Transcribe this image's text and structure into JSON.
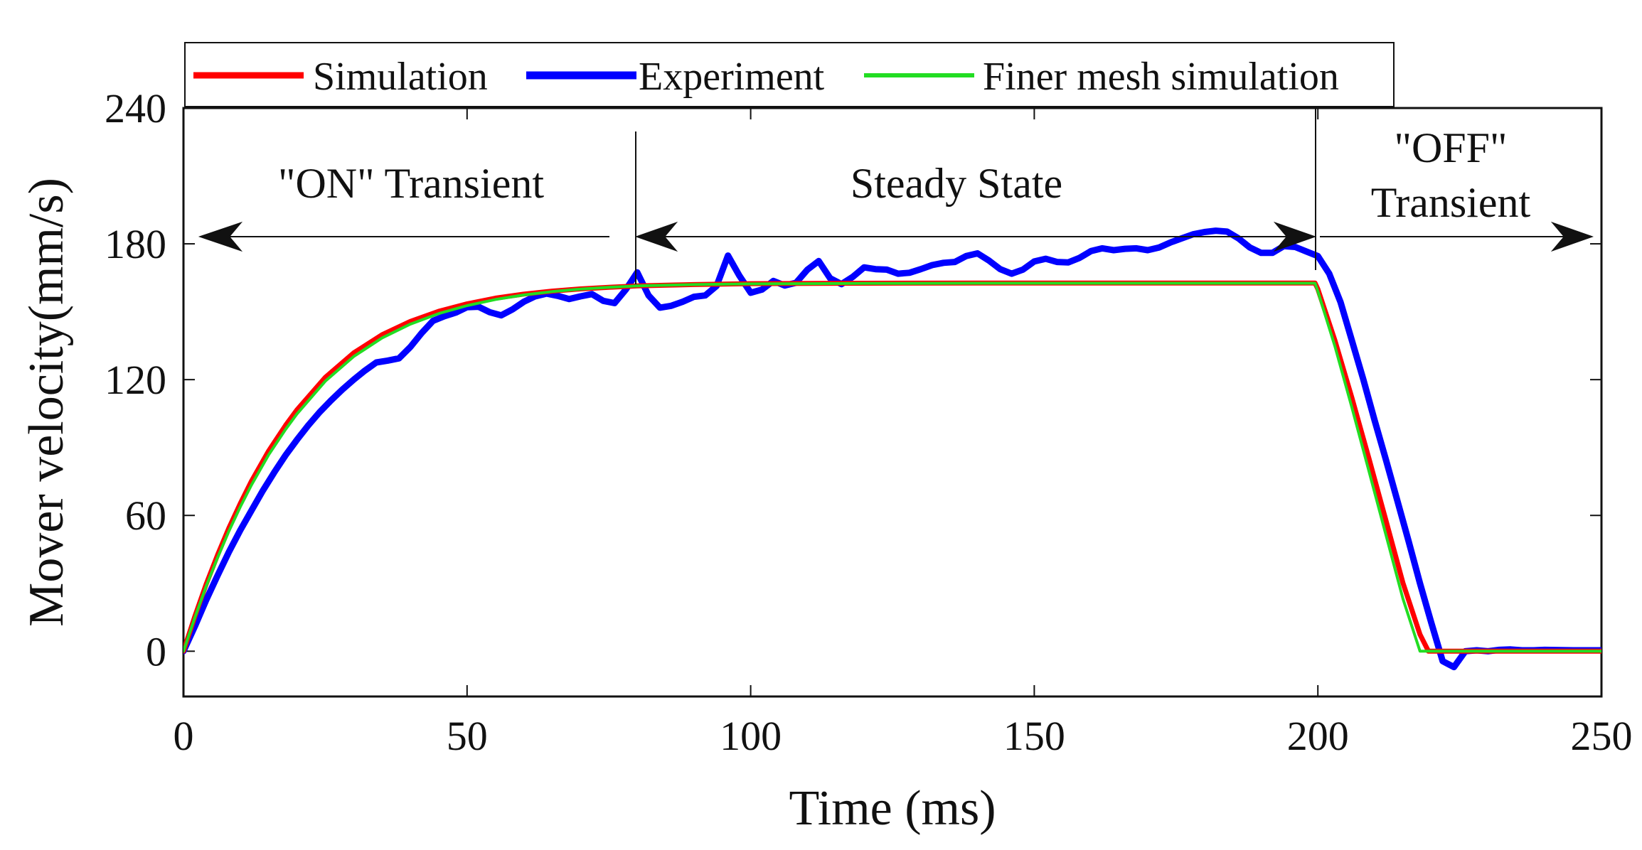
{
  "chart_data": {
    "type": "line",
    "title": "",
    "xlabel": "Time (ms)",
    "ylabel": "Mover velocity(mm/s)",
    "xlim": [
      0,
      250
    ],
    "ylim": [
      -20,
      240
    ],
    "xticks": [
      0,
      50,
      100,
      150,
      200,
      250
    ],
    "yticks": [
      0,
      60,
      120,
      180,
      240
    ],
    "grid": false,
    "legend_position": "top",
    "series": [
      {
        "name": "Simulation",
        "color": "#ff0000",
        "x": [
          0,
          2,
          4,
          6,
          8,
          10,
          12,
          15,
          18,
          20,
          25,
          30,
          35,
          40,
          45,
          50,
          55,
          60,
          65,
          70,
          75,
          80,
          90,
          100,
          120,
          140,
          160,
          180,
          199.5,
          200,
          203,
          206,
          209,
          212,
          215,
          218,
          219.5,
          225,
          230,
          240,
          250
        ],
        "values": [
          0,
          15.4,
          29.6,
          42.5,
          54.4,
          65.2,
          75.2,
          88.4,
          99.8,
          106.6,
          121.0,
          131.8,
          139.8,
          145.7,
          150.2,
          153.5,
          156.0,
          157.8,
          159.1,
          160.1,
          160.8,
          161.4,
          162.0,
          162.4,
          162.6,
          162.7,
          162.7,
          162.7,
          162.7,
          160.0,
          137.4,
          111.9,
          85.2,
          57.8,
          30.2,
          7.4,
          0,
          0,
          0,
          0,
          0
        ]
      },
      {
        "name": "Experiment",
        "color": "#0000ff",
        "x": [
          0,
          2,
          4,
          6,
          8,
          10,
          12,
          14,
          16,
          18,
          20,
          22,
          24,
          26,
          28,
          30,
          32,
          34,
          36,
          38,
          40,
          42,
          44,
          46,
          48,
          50,
          52,
          54,
          56,
          58,
          60,
          62,
          64,
          66,
          68,
          70,
          72,
          74,
          76,
          78,
          80,
          82,
          84,
          86,
          88,
          90,
          92,
          94,
          96,
          98,
          100,
          102,
          104,
          106,
          108,
          110,
          112,
          114,
          116,
          118,
          120,
          122,
          124,
          126,
          128,
          130,
          132,
          134,
          136,
          138,
          140,
          142,
          144,
          146,
          148,
          150,
          152,
          154,
          156,
          158,
          160,
          162,
          164,
          166,
          168,
          170,
          172,
          174,
          176,
          178,
          180,
          182,
          184,
          186,
          188,
          190,
          192,
          194,
          196,
          198,
          200,
          202,
          204,
          206,
          208,
          210,
          212,
          214,
          216,
          218,
          220,
          222,
          224,
          226,
          228,
          230,
          232,
          234,
          236,
          238,
          240,
          245,
          250
        ],
        "values": [
          0,
          11,
          22.6,
          33.4,
          43.8,
          53.4,
          62.2,
          71,
          79,
          86.6,
          93.4,
          99.8,
          105.6,
          110.8,
          115.6,
          120,
          124,
          127.6,
          128.4,
          129.4,
          134.4,
          140.6,
          146,
          148,
          149.6,
          152,
          152.2,
          149.8,
          148.4,
          151,
          154.4,
          156.8,
          158,
          157,
          155.6,
          156.8,
          157.8,
          154.8,
          153.8,
          159.8,
          167.4,
          157.2,
          151.8,
          152.6,
          154.4,
          156.6,
          157.2,
          161.4,
          174.8,
          166,
          158.4,
          159.8,
          163.6,
          161.6,
          162.8,
          168.6,
          172.4,
          164.8,
          162.2,
          165.4,
          169.6,
          168.8,
          168.6,
          166.8,
          167.2,
          168.8,
          170.6,
          171.6,
          172,
          174.6,
          175.8,
          172.6,
          168.8,
          166.8,
          168.6,
          172.2,
          173.4,
          172,
          171.8,
          173.8,
          176.8,
          178,
          177.2,
          177.8,
          178,
          177.2,
          178.4,
          180.6,
          182.4,
          184.2,
          185.2,
          185.8,
          185.4,
          182.4,
          178.4,
          176,
          176,
          179,
          178.6,
          176.6,
          174.6,
          166.8,
          154.2,
          137.2,
          120.2,
          102,
          84.6,
          66.6,
          48.6,
          30,
          12.6,
          -4.4,
          -7,
          0,
          0.4,
          0,
          0.6,
          0.8,
          0.4,
          0.4,
          0.6,
          0.4,
          0.4
        ]
      },
      {
        "name": "Finer mesh simulation",
        "color": "#22dd22",
        "x": [
          0,
          2,
          4,
          6,
          8,
          10,
          12,
          15,
          18,
          20,
          25,
          30,
          35,
          40,
          45,
          50,
          55,
          60,
          65,
          70,
          75,
          80,
          90,
          100,
          120,
          140,
          160,
          180,
          199.5,
          200,
          203,
          206,
          209,
          212,
          215,
          218,
          219,
          225,
          230,
          240,
          250
        ],
        "values": [
          0,
          14.9,
          28.7,
          41.3,
          53.0,
          63.7,
          73.5,
          86.7,
          98.0,
          104.8,
          119.3,
          130.2,
          138.4,
          144.5,
          149.2,
          152.7,
          155.4,
          157.4,
          158.9,
          160.0,
          160.8,
          161.4,
          162.0,
          162.3,
          162.5,
          162.6,
          162.6,
          162.6,
          162.6,
          159.0,
          134.8,
          107.6,
          79.6,
          51.4,
          23.2,
          0,
          0,
          0,
          0,
          0,
          0
        ]
      }
    ],
    "annotations": [
      {
        "id": "on",
        "text": "\"ON\" Transient"
      },
      {
        "id": "steady",
        "text": "Steady State"
      },
      {
        "id": "off1",
        "text": "\"OFF\""
      },
      {
        "id": "off2",
        "text": "Transient"
      }
    ]
  }
}
